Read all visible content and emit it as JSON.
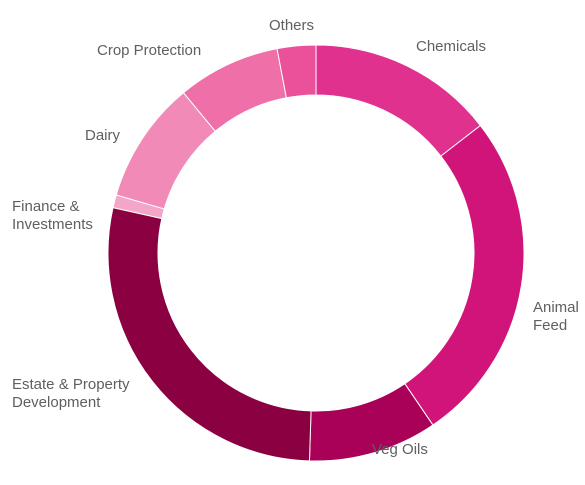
{
  "chart_data": {
    "type": "pie",
    "style": "donut",
    "title": "",
    "slices": [
      {
        "label": [
          "Chemicals"
        ],
        "value": 14.5,
        "color": "#e0318f"
      },
      {
        "label": [
          "Animal",
          "Feed"
        ],
        "value": 26.0,
        "color": "#d01479"
      },
      {
        "label": [
          "Veg Oils"
        ],
        "value": 10.0,
        "color": "#a90058"
      },
      {
        "label": [
          "Estate & Property",
          "Development"
        ],
        "value": 28.0,
        "color": "#8a0041"
      },
      {
        "label": [
          "Finance &",
          "Investments"
        ],
        "value": 1.0,
        "color": "#f3a6c8"
      },
      {
        "label": [
          "Dairy"
        ],
        "value": 9.5,
        "color": "#f28ab7"
      },
      {
        "label": [
          "Crop Protection"
        ],
        "value": 8.0,
        "color": "#ef6fa9"
      },
      {
        "label": [
          "Others"
        ],
        "value": 3.0,
        "color": "#ea519a"
      }
    ]
  }
}
